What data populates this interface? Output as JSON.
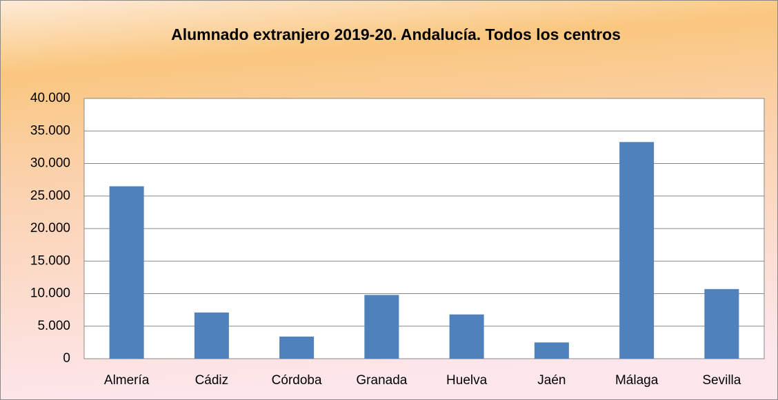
{
  "chart_data": {
    "type": "bar",
    "title": "Alumnado extranjero 2019-20. Andalucía. Todos los centros",
    "categories": [
      "Almería",
      "Cádiz",
      "Córdoba",
      "Granada",
      "Huelva",
      "Jaén",
      "Málaga",
      "Sevilla"
    ],
    "values": [
      26500,
      7100,
      3400,
      9800,
      6800,
      2500,
      33300,
      10700
    ],
    "color": "#4f81bd",
    "ylim": [
      0,
      40000
    ],
    "yticks": [
      0,
      {
        "value": 5000,
        "label": "5.000"
      },
      {
        "value": 10000,
        "label": "10.000"
      },
      {
        "value": 15000,
        "label": "15.000"
      },
      {
        "value": 20000,
        "label": "20.000"
      },
      {
        "value": 25000,
        "label": "25.000"
      },
      {
        "value": 30000,
        "label": "30.000"
      },
      {
        "value": 35000,
        "label": "35.000"
      },
      {
        "value": 40000,
        "label": "40.000"
      }
    ],
    "grid": true
  }
}
